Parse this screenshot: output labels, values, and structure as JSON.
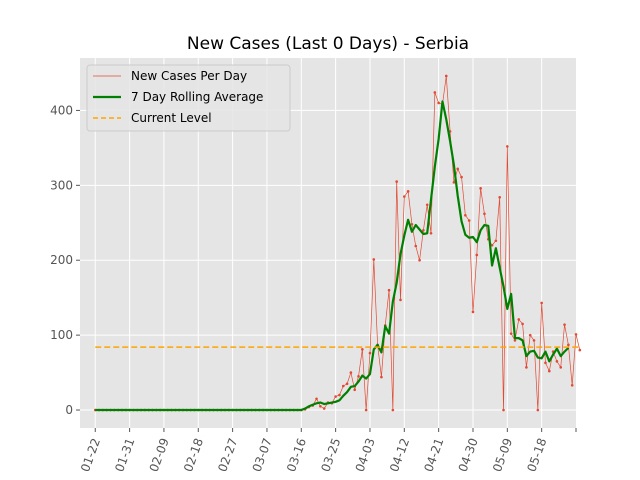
{
  "chart_data": {
    "type": "line",
    "title": "New Cases (Last 0 Days) - Serbia",
    "xlabel": "",
    "ylabel": "",
    "year": 2020,
    "grid": true,
    "legend_placement": "top-left",
    "x_ticks": [
      "01-22",
      "01-31",
      "02-09",
      "02-18",
      "02-27",
      "03-07",
      "03-16",
      "03-25",
      "04-03",
      "04-12",
      "04-21",
      "04-30",
      "05-09",
      "05-18"
    ],
    "y_ticks": [
      0,
      100,
      200,
      300,
      400
    ],
    "xlim": [
      "2020-01-18",
      "2020-05-27"
    ],
    "ylim": [
      -24,
      470
    ],
    "start_date": "2020-01-22",
    "series": [
      {
        "name": "New Cases Per Day",
        "color": "#e24a33",
        "style": "thin-line-with-markers",
        "values": [
          0,
          0,
          0,
          0,
          0,
          0,
          0,
          0,
          0,
          0,
          0,
          0,
          0,
          0,
          0,
          0,
          0,
          0,
          0,
          0,
          0,
          0,
          0,
          0,
          0,
          0,
          0,
          0,
          0,
          0,
          0,
          0,
          0,
          0,
          0,
          0,
          0,
          0,
          0,
          0,
          0,
          0,
          0,
          0,
          0,
          0,
          0,
          0,
          0,
          0,
          0,
          0,
          0,
          0,
          0,
          1,
          4,
          6,
          15,
          5,
          2,
          10,
          9,
          18,
          20,
          32,
          35,
          50,
          27,
          45,
          81,
          0,
          76,
          201,
          87,
          44,
          113,
          160,
          0,
          305,
          147,
          285,
          292,
          248,
          219,
          200,
          240,
          274,
          236,
          424,
          410,
          408,
          446,
          372,
          304,
          322,
          311,
          260,
          253,
          131,
          207,
          296,
          262,
          228,
          220,
          226,
          284,
          0,
          352,
          102,
          93,
          121,
          115,
          57,
          100,
          93,
          0,
          143,
          63,
          52,
          78,
          65,
          57,
          114,
          87,
          33,
          101,
          80
        ]
      },
      {
        "name": "7 Day Rolling Average",
        "color": "#008000",
        "style": "thick-line",
        "values": [
          0,
          0,
          0,
          0,
          0,
          0,
          0,
          0,
          0,
          0,
          0,
          0,
          0,
          0,
          0,
          0,
          0,
          0,
          0,
          0,
          0,
          0,
          0,
          0,
          0,
          0,
          0,
          0,
          0,
          0,
          0,
          0,
          0,
          0,
          0,
          0,
          0,
          0,
          0,
          0,
          0,
          0,
          0,
          0,
          0,
          0,
          0,
          0,
          0,
          0,
          0,
          0,
          0,
          0,
          0,
          2,
          5,
          7,
          9,
          10,
          8,
          9,
          10,
          11,
          13,
          19,
          24,
          31,
          32,
          38,
          46,
          42,
          48,
          81,
          87,
          77,
          112,
          102,
          145,
          170,
          208,
          233,
          254,
          238,
          247,
          241,
          235,
          236,
          281,
          325,
          362,
          412,
          388,
          359,
          327,
          286,
          252,
          234,
          230,
          231,
          224,
          240,
          247,
          246,
          193,
          216,
          190,
          165,
          135,
          155,
          96,
          96,
          93,
          72,
          78,
          79,
          70,
          69,
          78,
          65,
          74,
          82,
          72,
          78,
          83
        ]
      },
      {
        "name": "Current Level",
        "color": "#ffa500",
        "style": "dashed-line",
        "value": 84
      }
    ]
  }
}
